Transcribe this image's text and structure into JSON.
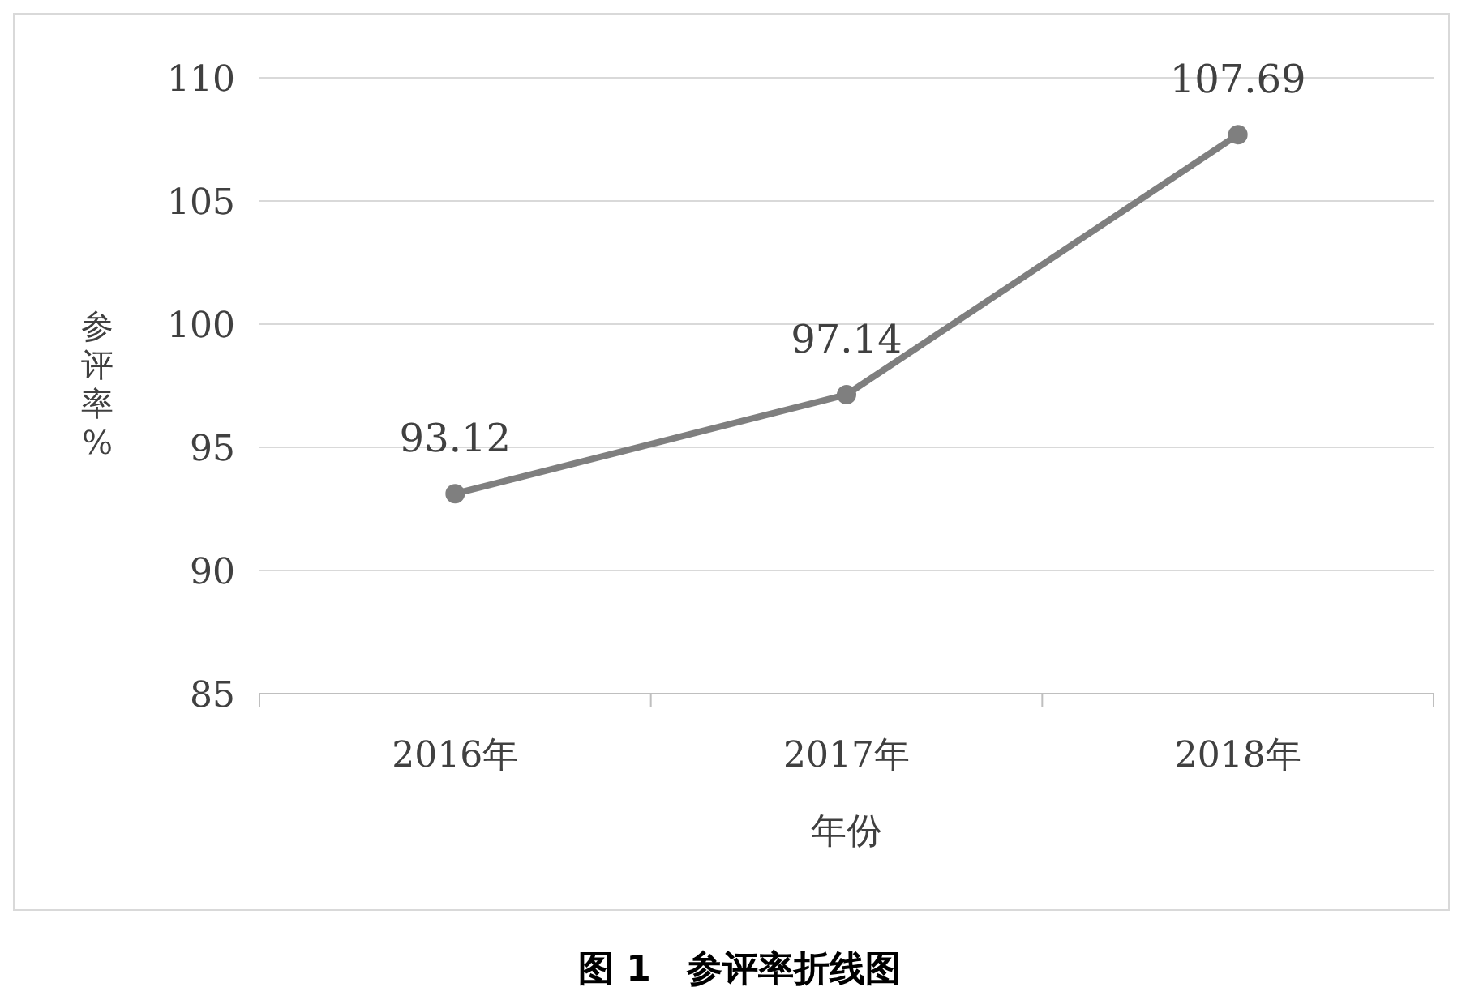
{
  "chart_data": {
    "type": "line",
    "categories": [
      "2016年",
      "2017年",
      "2018年"
    ],
    "values": [
      93.12,
      97.14,
      107.69
    ],
    "color": "#7f7f7f",
    "marker": "circle",
    "data_labels": true,
    "ylim": [
      85,
      110
    ],
    "yticks": [
      85,
      90,
      95,
      100,
      105,
      110
    ],
    "grid": "y",
    "xlabel": "年份",
    "ylabel": "参评率%",
    "annotations": [
      "图 1　参评率折线图"
    ]
  }
}
